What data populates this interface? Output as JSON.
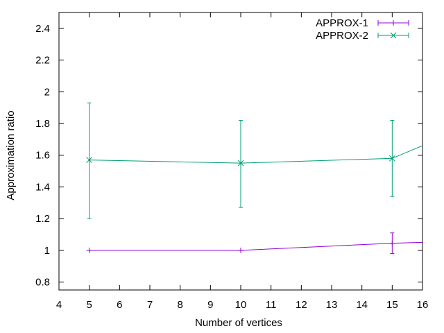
{
  "chart_data": {
    "type": "line",
    "title": "",
    "xlabel": "Number of vertices",
    "ylabel": "Approximation ratio",
    "xlim": [
      4,
      16
    ],
    "ylim": [
      0.75,
      2.5
    ],
    "x_ticks": [
      4,
      5,
      6,
      7,
      8,
      9,
      10,
      11,
      12,
      13,
      14,
      15,
      16
    ],
    "y_ticks": [
      0.8,
      1,
      1.2,
      1.4,
      1.6,
      1.8,
      2,
      2.2,
      2.4
    ],
    "y_tick_labels": [
      "0.8",
      "1",
      "1.2",
      "1.4",
      "1.6",
      "1.8",
      "2",
      "2.2",
      "2.4"
    ],
    "grid": false,
    "legend_position": "top-right",
    "series": [
      {
        "name": "APPROX-1",
        "color": "#9400d3",
        "marker": "plus",
        "points": [
          {
            "x": 5,
            "y": 1.0,
            "ylow": 1.0,
            "yhigh": 1.0
          },
          {
            "x": 10,
            "y": 1.0,
            "ylow": 1.0,
            "yhigh": 1.0
          },
          {
            "x": 15,
            "y": 1.045,
            "ylow": 0.98,
            "yhigh": 1.11
          },
          {
            "x": 16,
            "y": 1.05,
            "ylow": null,
            "yhigh": null
          }
        ]
      },
      {
        "name": "APPROX-2",
        "color": "#009e73",
        "marker": "cross",
        "points": [
          {
            "x": 5,
            "y": 1.57,
            "ylow": 1.2,
            "yhigh": 1.93
          },
          {
            "x": 10,
            "y": 1.55,
            "ylow": 1.27,
            "yhigh": 1.82
          },
          {
            "x": 15,
            "y": 1.58,
            "ylow": 1.34,
            "yhigh": 1.82
          },
          {
            "x": 16,
            "y": 1.66,
            "ylow": null,
            "yhigh": null
          }
        ]
      }
    ]
  }
}
